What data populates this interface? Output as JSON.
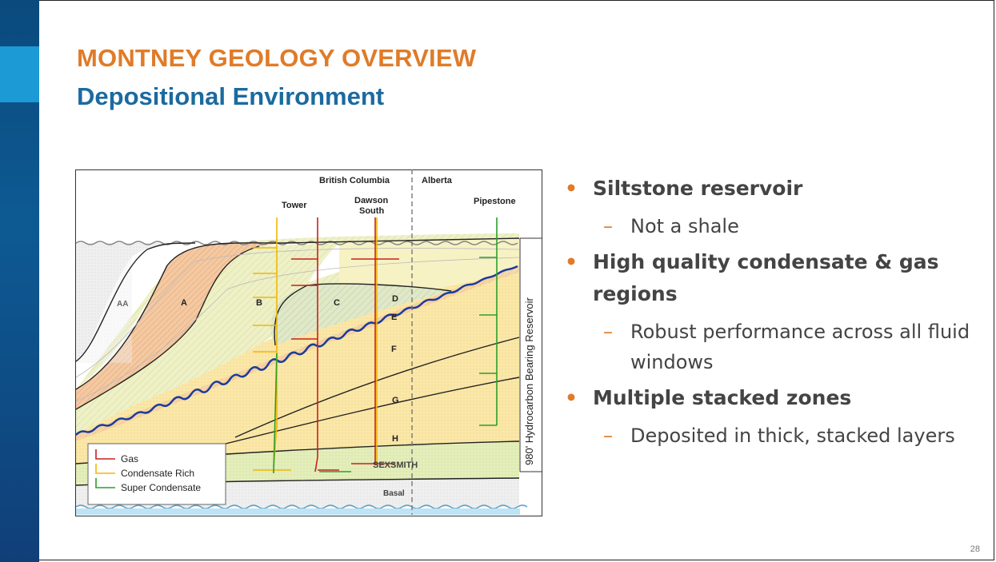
{
  "slide": {
    "title": "MONTNEY GEOLOGY OVERVIEW",
    "subtitle": "Depositional Environment",
    "page_number": "28"
  },
  "diagram": {
    "regions": {
      "bc": "British Columbia",
      "ab": "Alberta"
    },
    "wells": {
      "tower": "Tower",
      "dawson_1": "Dawson",
      "dawson_2": "South",
      "pipestone": "Pipestone"
    },
    "zones": {
      "aa": "AA",
      "a": "A",
      "b": "B",
      "c": "C",
      "d": "D",
      "e": "E",
      "f": "F",
      "g": "G",
      "h": "H",
      "sexsmith": "SEXSMITH",
      "basal": "Basal"
    },
    "thickness_label": "980' Hydrocarbon Bearing Reservoir",
    "legend": {
      "gas": "Gas",
      "condensate_rich": "Condensate Rich",
      "super_condensate": "Super Condensate"
    },
    "colors": {
      "gas": "#c8201f",
      "condensate": "#f2b705",
      "super_condensate": "#2aa02a",
      "unconformity": "#1a3c9c",
      "zone_a": "#f4c9a2",
      "zone_bc": "#f3f0c2",
      "zone_main": "#fbe7a8",
      "zone_lower": "#e6efc0",
      "basal": "#eeeeee"
    }
  },
  "bullets": [
    {
      "text": "Siltstone reservoir",
      "sub": [
        "Not a shale"
      ]
    },
    {
      "text": "High quality condensate & gas regions",
      "sub": [
        "Robust performance across all fluid windows"
      ]
    },
    {
      "text": "Multiple stacked zones",
      "sub": [
        "Deposited in thick, stacked layers"
      ]
    }
  ]
}
